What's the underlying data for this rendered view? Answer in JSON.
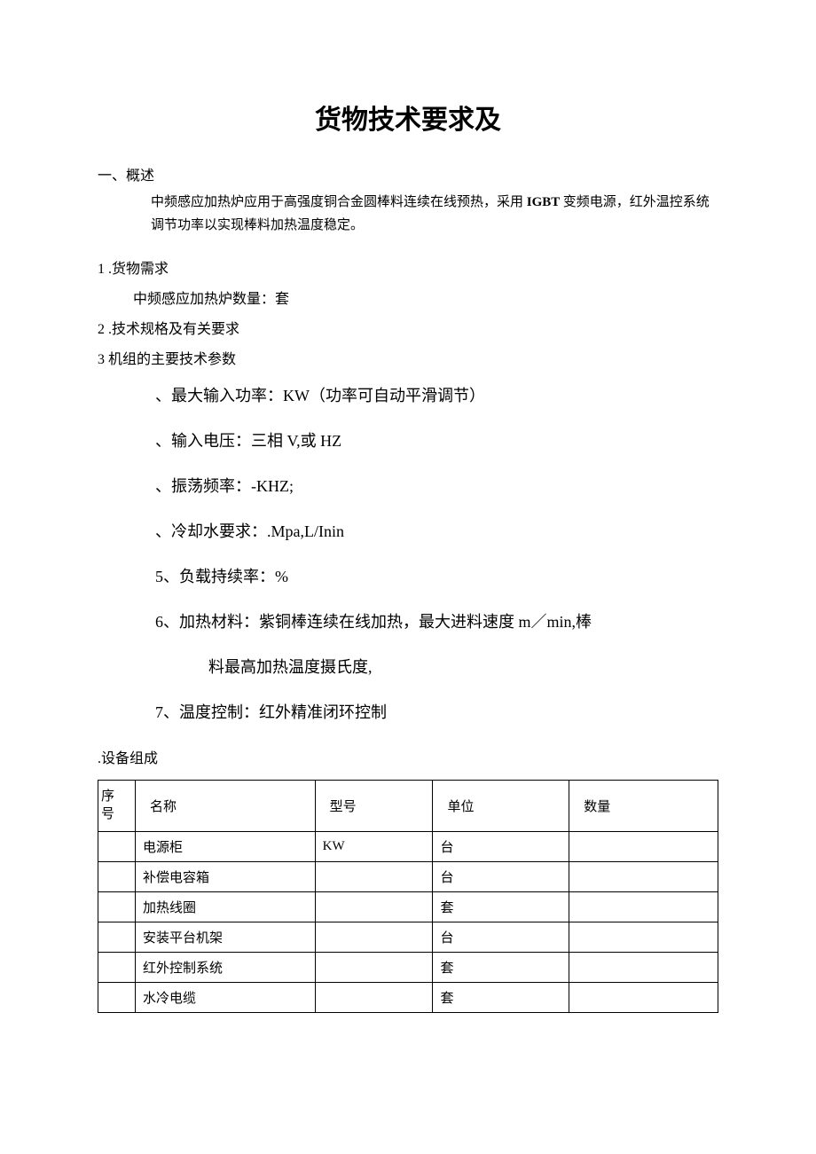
{
  "title": "货物技术要求及",
  "section1": {
    "heading": "一、概述",
    "body_before": "中频感应加热炉应用于高强度铜合金圆棒料连续在线预热，采用",
    "body_bold": " IGBT ",
    "body_after": "变频电源，红外温控系统调节功率以实现棒料加热温度稳定。"
  },
  "item1": {
    "heading": "1 .货物需求",
    "sub": "中频感应加热炉数量：套"
  },
  "item2": {
    "heading": "2 .技术规格及有关要求"
  },
  "item3": {
    "heading": "3 机组的主要技术参数",
    "params": [
      "、最大输入功率：KW（功率可自动平滑调节）",
      "、输入电压：三相 V,或 HZ",
      "、振荡频率：-KHZ;",
      "、冷却水要求：.Mpa,L/Inin",
      "5、负载持续率：%",
      "6、加热材料：紫铜棒连续在线加热，最大进料速度 m／min,棒",
      "料最高加热温度摄氏度,",
      "7、温度控制：红外精准闭环控制"
    ]
  },
  "compose": {
    "heading": ".设备组成",
    "table": {
      "columns": [
        "序号",
        "名称",
        "型号",
        "单位",
        "数量"
      ],
      "rows": [
        [
          "",
          "电源柜",
          "KW",
          "台",
          ""
        ],
        [
          "",
          "补偿电容箱",
          "",
          "台",
          ""
        ],
        [
          "",
          "加热线圈",
          "",
          "套",
          ""
        ],
        [
          "",
          "安装平台机架",
          "",
          "台",
          ""
        ],
        [
          "",
          "红外控制系统",
          "",
          "套",
          ""
        ],
        [
          "",
          "水冷电缆",
          "",
          "套",
          ""
        ]
      ],
      "col_header_seq_line1": "序",
      "col_header_seq_line2": "号"
    }
  }
}
